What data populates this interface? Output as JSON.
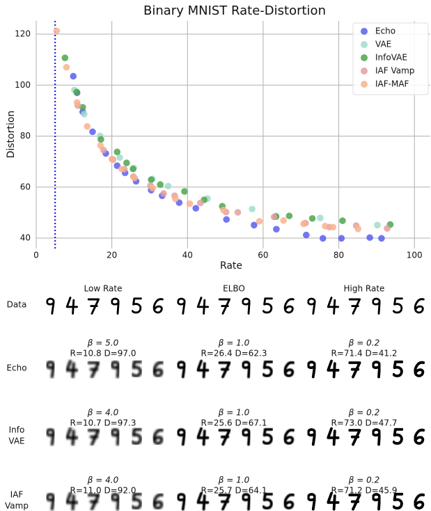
{
  "chart_data": {
    "type": "scatter",
    "title": "Binary MNIST Rate-Distortion",
    "x_label": "Rate",
    "y_label": "Distortion",
    "xlim": [
      0,
      104.2
    ],
    "ylim": [
      35.9,
      125.2
    ],
    "xticks": [
      0,
      20,
      40,
      60,
      80,
      100
    ],
    "yticks": [
      40,
      60,
      80,
      100,
      120
    ],
    "grid": true,
    "legend": "upper right",
    "reference_x": 5.0,
    "reference_color": "#1f1fd6",
    "series": [
      {
        "name": "Echo",
        "color": "#5a5ef0",
        "x": [
          9.8,
          10.8,
          12.3,
          14.9,
          18.4,
          21.4,
          23.5,
          26.4,
          30.4,
          33.3,
          37.8,
          42.2,
          50.3,
          57.6,
          63.5,
          71.4,
          75.8,
          80.7,
          88.2,
          91.3
        ],
        "values": [
          103.5,
          97.0,
          89.5,
          81.7,
          73.2,
          68.4,
          65.6,
          62.3,
          58.8,
          56.6,
          53.9,
          51.7,
          47.3,
          45.1,
          43.5,
          41.2,
          39.9,
          39.9,
          40.2,
          39.9
        ]
      },
      {
        "name": "VAE",
        "color": "#a3dccb",
        "x": [
          10.1,
          12.7,
          16.9,
          22.1,
          25.8,
          30.7,
          34.9,
          45.3,
          57.1,
          63.4,
          75.1,
          90.2
        ],
        "values": [
          98.1,
          88.6,
          80.1,
          71.6,
          67.5,
          63.2,
          60.4,
          55.5,
          51.4,
          48.7,
          47.9,
          45.1
        ]
      },
      {
        "name": "InfoVAE",
        "color": "#4ca64c",
        "x": [
          7.6,
          10.7,
          12.3,
          17.1,
          21.4,
          23.9,
          25.6,
          30.4,
          32.8,
          39.2,
          44.4,
          49.2,
          63.4,
          66.9,
          73.0,
          81.0,
          93.6
        ],
        "values": [
          110.7,
          97.3,
          91.3,
          78.7,
          73.8,
          69.5,
          67.1,
          62.9,
          61.0,
          58.3,
          55.0,
          52.5,
          48.4,
          48.7,
          47.7,
          46.8,
          45.3
        ]
      },
      {
        "name": "IAF Vamp",
        "color": "#e3a0a0",
        "x": [
          11.0,
          17.8,
          20.3,
          23.3,
          25.7,
          30.2,
          33.7,
          36.6,
          43.4,
          50.2,
          53.3,
          62.9,
          71.2,
          77.5,
          84.6,
          92.8
        ],
        "values": [
          92.0,
          74.5,
          70.8,
          67.0,
          64.1,
          60.6,
          57.5,
          56.6,
          53.8,
          50.2,
          50.1,
          48.3,
          45.9,
          44.3,
          44.9,
          43.8
        ]
      },
      {
        "name": "IAF-MAF",
        "color": "#f8b38e",
        "x": [
          5.4,
          8.0,
          10.8,
          13.5,
          17.0,
          20.0,
          22.6,
          26.0,
          30.8,
          36.8,
          40.6,
          49.5,
          59.0,
          65.4,
          70.7,
          76.4,
          78.5,
          85.1
        ],
        "values": [
          121.3,
          107.0,
          93.2,
          83.8,
          76.3,
          71.0,
          67.1,
          63.6,
          59.6,
          55.4,
          53.5,
          51.0,
          46.6,
          46.9,
          45.6,
          44.7,
          44.3,
          43.6
        ]
      }
    ]
  },
  "samples": {
    "columns": [
      "Low Rate",
      "ELBO",
      "High Rate"
    ],
    "rows": [
      {
        "label": [
          "Data"
        ],
        "captions": []
      },
      {
        "label": [
          "Echo"
        ],
        "captions": [
          [
            "β = 5.0",
            "R=10.8 D=97.0"
          ],
          [
            "β = 1.0",
            "R=26.4 D=62.3"
          ],
          [
            "β = 0.2",
            "R=71.4 D=41.2"
          ]
        ]
      },
      {
        "label": [
          "Info",
          "VAE"
        ],
        "captions": [
          [
            "β = 4.0",
            "R=10.7 D=97.3"
          ],
          [
            "β = 1.0",
            "R=25.6 D=67.1"
          ],
          [
            "β = 0.2",
            "R=73.0 D=47.7"
          ]
        ]
      },
      {
        "label": [
          "IAF",
          "Vamp"
        ],
        "captions": [
          [
            "β = 4.0",
            "R=11.0 D=92.0"
          ],
          [
            "β = 1.0",
            "R=25.7 D=64.1"
          ],
          [
            "β = 0.2",
            "R=71.2 D=45.9"
          ]
        ]
      }
    ]
  }
}
